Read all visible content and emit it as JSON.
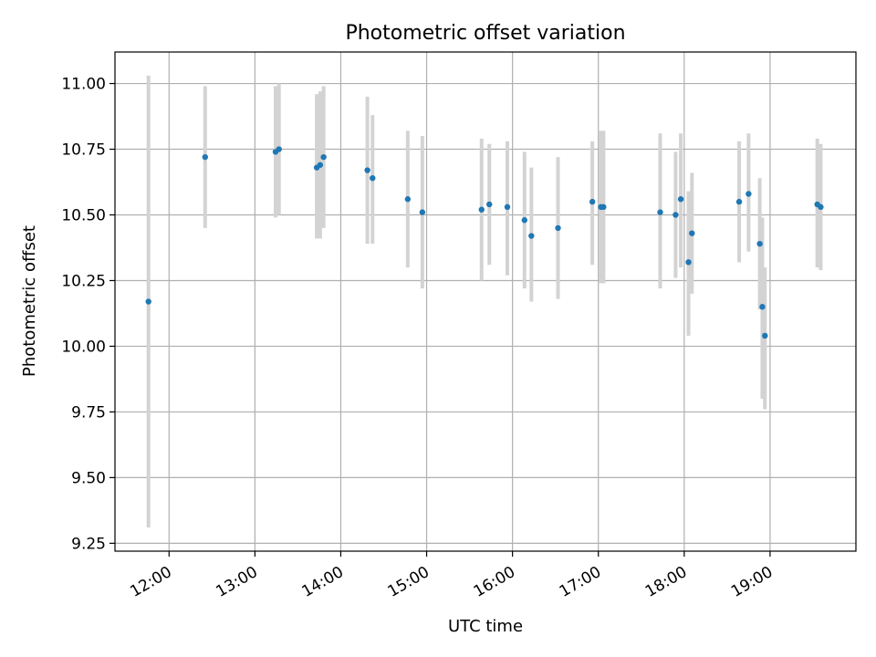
{
  "chart_data": {
    "type": "scatter",
    "title": "Photometric offset variation",
    "xlabel": "UTC time",
    "ylabel": "Photometric offset",
    "grid": true,
    "x_unit": "UTC time (hours, decimal)",
    "xlim": [
      11.37,
      20.0
    ],
    "ylim": [
      9.22,
      11.12
    ],
    "x_ticks": [
      12,
      13,
      14,
      15,
      16,
      17,
      18,
      19
    ],
    "x_tick_labels": [
      "12:00",
      "13:00",
      "14:00",
      "15:00",
      "16:00",
      "17:00",
      "18:00",
      "19:00"
    ],
    "y_ticks": [
      9.25,
      9.5,
      9.75,
      10.0,
      10.25,
      10.5,
      10.75,
      11.0
    ],
    "y_tick_labels": [
      "9.25",
      "9.50",
      "9.75",
      "10.00",
      "10.25",
      "10.50",
      "10.75",
      "11.00"
    ],
    "colors": {
      "point": "#1f77b4",
      "errorbar": "#d3d3d3",
      "grid": "#b0b0b0"
    },
    "series": [
      {
        "points": [
          {
            "x": 11.76,
            "y": 10.17,
            "lo": 9.31,
            "hi": 11.03
          },
          {
            "x": 12.42,
            "y": 10.72,
            "lo": 10.45,
            "hi": 10.99
          },
          {
            "x": 13.24,
            "y": 10.74,
            "lo": 10.49,
            "hi": 10.99
          },
          {
            "x": 13.28,
            "y": 10.75,
            "lo": 10.5,
            "hi": 11.0
          },
          {
            "x": 13.72,
            "y": 10.68,
            "lo": 10.41,
            "hi": 10.96
          },
          {
            "x": 13.76,
            "y": 10.69,
            "lo": 10.41,
            "hi": 10.97
          },
          {
            "x": 13.8,
            "y": 10.72,
            "lo": 10.45,
            "hi": 10.99
          },
          {
            "x": 14.31,
            "y": 10.67,
            "lo": 10.39,
            "hi": 10.95
          },
          {
            "x": 14.37,
            "y": 10.64,
            "lo": 10.39,
            "hi": 10.88
          },
          {
            "x": 14.78,
            "y": 10.56,
            "lo": 10.3,
            "hi": 10.82
          },
          {
            "x": 14.95,
            "y": 10.51,
            "lo": 10.22,
            "hi": 10.8
          },
          {
            "x": 15.64,
            "y": 10.52,
            "lo": 10.25,
            "hi": 10.79
          },
          {
            "x": 15.73,
            "y": 10.54,
            "lo": 10.31,
            "hi": 10.77
          },
          {
            "x": 15.94,
            "y": 10.53,
            "lo": 10.27,
            "hi": 10.78
          },
          {
            "x": 16.14,
            "y": 10.48,
            "lo": 10.22,
            "hi": 10.74
          },
          {
            "x": 16.22,
            "y": 10.42,
            "lo": 10.17,
            "hi": 10.68
          },
          {
            "x": 16.53,
            "y": 10.45,
            "lo": 10.18,
            "hi": 10.72
          },
          {
            "x": 16.93,
            "y": 10.55,
            "lo": 10.31,
            "hi": 10.78
          },
          {
            "x": 17.03,
            "y": 10.53,
            "lo": 10.24,
            "hi": 10.82
          },
          {
            "x": 17.06,
            "y": 10.53,
            "lo": 10.24,
            "hi": 10.82
          },
          {
            "x": 17.72,
            "y": 10.51,
            "lo": 10.22,
            "hi": 10.81
          },
          {
            "x": 17.9,
            "y": 10.5,
            "lo": 10.26,
            "hi": 10.74
          },
          {
            "x": 17.96,
            "y": 10.56,
            "lo": 10.3,
            "hi": 10.81
          },
          {
            "x": 18.05,
            "y": 10.32,
            "lo": 10.04,
            "hi": 10.59
          },
          {
            "x": 18.09,
            "y": 10.43,
            "lo": 10.2,
            "hi": 10.66
          },
          {
            "x": 18.64,
            "y": 10.55,
            "lo": 10.32,
            "hi": 10.78
          },
          {
            "x": 18.75,
            "y": 10.58,
            "lo": 10.36,
            "hi": 10.81
          },
          {
            "x": 18.88,
            "y": 10.39,
            "lo": 10.14,
            "hi": 10.64
          },
          {
            "x": 18.91,
            "y": 10.15,
            "lo": 9.8,
            "hi": 10.49
          },
          {
            "x": 18.94,
            "y": 10.04,
            "lo": 9.76,
            "hi": 10.3
          },
          {
            "x": 19.55,
            "y": 10.54,
            "lo": 10.3,
            "hi": 10.79
          },
          {
            "x": 19.59,
            "y": 10.53,
            "lo": 10.29,
            "hi": 10.77
          }
        ]
      }
    ]
  }
}
